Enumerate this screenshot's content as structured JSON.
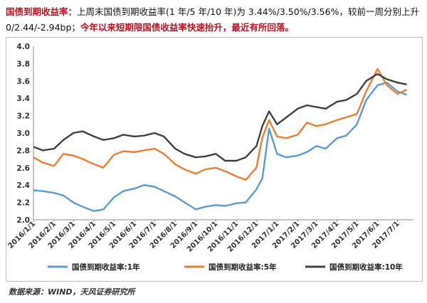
{
  "headline": {
    "title": "国债到期收益率：",
    "body": "上周末国债到期收益率(1 年/5 年/10 年)为 3.44%/3.50%/3.56%，较前一周分别上升 0/2.44/-2.94bp；",
    "note": "今年以来短期限国债收益率快速抬升，最近有所回落。"
  },
  "source": "数据来源：WIND，天风证券研究所",
  "chart_data": {
    "type": "line",
    "title": "",
    "xlabel": "",
    "ylabel": "",
    "ylim": [
      2.0,
      4.0
    ],
    "yticks": [
      2.0,
      2.2,
      2.4,
      2.6,
      2.8,
      3.0,
      3.2,
      3.4,
      3.6,
      3.8,
      4.0
    ],
    "xticks": [
      "2016/1/1",
      "2016/2/1",
      "2016/3/1",
      "2016/4/1",
      "2016/5/1",
      "2016/6/1",
      "2016/7/1",
      "2016/8/1",
      "2016/9/1",
      "2016/10/1",
      "2016/11/1",
      "2016/12/1",
      "2017/1/1",
      "2017/2/1",
      "2017/3/1",
      "2017/4/1",
      "2017/5/1",
      "2017/6/1",
      "2017/7/1"
    ],
    "x": [
      "2016/1/1",
      "2016/1/15",
      "2016/2/1",
      "2016/2/15",
      "2016/3/1",
      "2016/3/15",
      "2016/4/1",
      "2016/4/15",
      "2016/5/1",
      "2016/5/15",
      "2016/6/1",
      "2016/6/15",
      "2016/7/1",
      "2016/7/15",
      "2016/8/1",
      "2016/8/15",
      "2016/9/1",
      "2016/9/15",
      "2016/10/1",
      "2016/10/15",
      "2016/11/1",
      "2016/11/15",
      "2016/12/1",
      "2016/12/10",
      "2016/12/20",
      "2017/1/1",
      "2017/1/15",
      "2017/2/1",
      "2017/2/15",
      "2017/3/1",
      "2017/3/15",
      "2017/4/1",
      "2017/4/15",
      "2017/5/1",
      "2017/5/15",
      "2017/6/1",
      "2017/6/15",
      "2017/7/1",
      "2017/7/15"
    ],
    "series": [
      {
        "name": "国债到期收益率:1年",
        "color": "#5b9bd5",
        "values": [
          2.34,
          2.33,
          2.31,
          2.28,
          2.2,
          2.15,
          2.1,
          2.12,
          2.26,
          2.33,
          2.36,
          2.4,
          2.38,
          2.33,
          2.27,
          2.2,
          2.12,
          2.15,
          2.17,
          2.16,
          2.19,
          2.2,
          2.35,
          2.48,
          3.05,
          2.76,
          2.72,
          2.74,
          2.78,
          2.85,
          2.82,
          2.94,
          2.97,
          3.1,
          3.38,
          3.55,
          3.58,
          3.48,
          3.44
        ]
      },
      {
        "name": "国债到期收益率:5年",
        "color": "#ed7d31",
        "values": [
          2.72,
          2.66,
          2.62,
          2.76,
          2.74,
          2.7,
          2.64,
          2.6,
          2.75,
          2.79,
          2.78,
          2.8,
          2.82,
          2.76,
          2.64,
          2.58,
          2.53,
          2.58,
          2.6,
          2.56,
          2.5,
          2.46,
          2.6,
          2.95,
          3.15,
          2.96,
          2.94,
          2.98,
          3.12,
          3.08,
          3.1,
          3.15,
          3.18,
          3.22,
          3.48,
          3.74,
          3.55,
          3.45,
          3.5
        ]
      },
      {
        "name": "国债到期收益率:10年",
        "color": "#404040",
        "values": [
          2.84,
          2.8,
          2.82,
          2.92,
          3.0,
          3.02,
          2.96,
          2.92,
          2.94,
          2.98,
          2.96,
          2.97,
          3.0,
          2.96,
          2.82,
          2.76,
          2.72,
          2.73,
          2.76,
          2.68,
          2.68,
          2.72,
          2.85,
          3.08,
          3.25,
          3.1,
          3.18,
          3.28,
          3.32,
          3.3,
          3.28,
          3.36,
          3.38,
          3.45,
          3.6,
          3.68,
          3.62,
          3.58,
          3.56
        ]
      }
    ],
    "legend_position": "bottom",
    "grid": false
  }
}
